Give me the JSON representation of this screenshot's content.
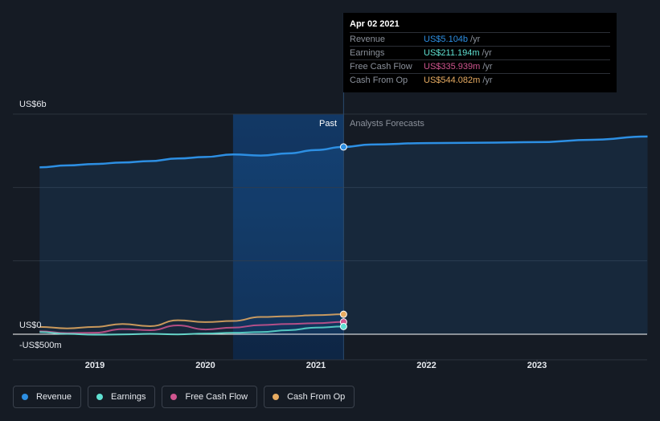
{
  "tooltip": {
    "date": "Apr 02 2021",
    "rows": [
      {
        "label": "Revenue",
        "value": "US$5.104b",
        "unit": "/yr",
        "color": "#2d8fe3"
      },
      {
        "label": "Earnings",
        "value": "US$211.194m",
        "unit": "/yr",
        "color": "#5fe0d1"
      },
      {
        "label": "Free Cash Flow",
        "value": "US$335.939m",
        "unit": "/yr",
        "color": "#d0558f"
      },
      {
        "label": "Cash From Op",
        "value": "US$544.082m",
        "unit": "/yr",
        "color": "#e8ac62"
      }
    ]
  },
  "legend": [
    {
      "label": "Revenue",
      "color": "#2d8fe3"
    },
    {
      "label": "Earnings",
      "color": "#5fe0d1"
    },
    {
      "label": "Free Cash Flow",
      "color": "#d0558f"
    },
    {
      "label": "Cash From Op",
      "color": "#e8ac62"
    }
  ],
  "chart_data": {
    "type": "line",
    "y_axis_labels": [
      "US$6b",
      "US$0",
      "-US$500m"
    ],
    "x_tick_labels": [
      "2019",
      "2020",
      "2021",
      "2022",
      "2023"
    ],
    "region_labels": {
      "past": "Past",
      "forecast": "Analysts Forecasts"
    },
    "ylim": [
      -500,
      6000
    ],
    "grid": true,
    "legend_position": "bottom-left",
    "current_date": 2021.25,
    "series": [
      {
        "name": "Revenue",
        "color": "#2d8fe3",
        "x": [
          2018.5,
          2018.75,
          2019.0,
          2019.25,
          2019.5,
          2019.75,
          2020.0,
          2020.25,
          2020.5,
          2020.75,
          2021.0,
          2021.25,
          2021.5,
          2022.0,
          2022.5,
          2023.0,
          2023.5,
          2024.0
        ],
        "values": [
          4550,
          4600,
          4640,
          4680,
          4720,
          4790,
          4830,
          4900,
          4870,
          4930,
          5020,
          5104,
          5170,
          5210,
          5220,
          5235,
          5300,
          5390
        ]
      },
      {
        "name": "Earnings",
        "color": "#5fe0d1",
        "x": [
          2018.5,
          2018.75,
          2019.0,
          2019.25,
          2019.5,
          2019.75,
          2020.0,
          2020.25,
          2020.5,
          2020.75,
          2021.0,
          2021.25
        ],
        "values": [
          60,
          10,
          -15,
          -5,
          10,
          -5,
          20,
          40,
          60,
          110,
          180,
          211.194
        ]
      },
      {
        "name": "Free Cash Flow",
        "color": "#d0558f",
        "x": [
          2018.5,
          2018.75,
          2019.0,
          2019.25,
          2019.5,
          2019.75,
          2020.0,
          2020.25,
          2020.5,
          2020.75,
          2021.0,
          2021.25
        ],
        "values": [
          80,
          30,
          40,
          140,
          110,
          240,
          130,
          180,
          250,
          280,
          300,
          335.939
        ]
      },
      {
        "name": "Cash From Op",
        "color": "#e8ac62",
        "x": [
          2018.5,
          2018.75,
          2019.0,
          2019.25,
          2019.5,
          2019.75,
          2020.0,
          2020.25,
          2020.5,
          2020.75,
          2021.0,
          2021.25
        ],
        "values": [
          200,
          160,
          200,
          280,
          220,
          380,
          330,
          360,
          470,
          490,
          520,
          544.082
        ]
      }
    ]
  }
}
